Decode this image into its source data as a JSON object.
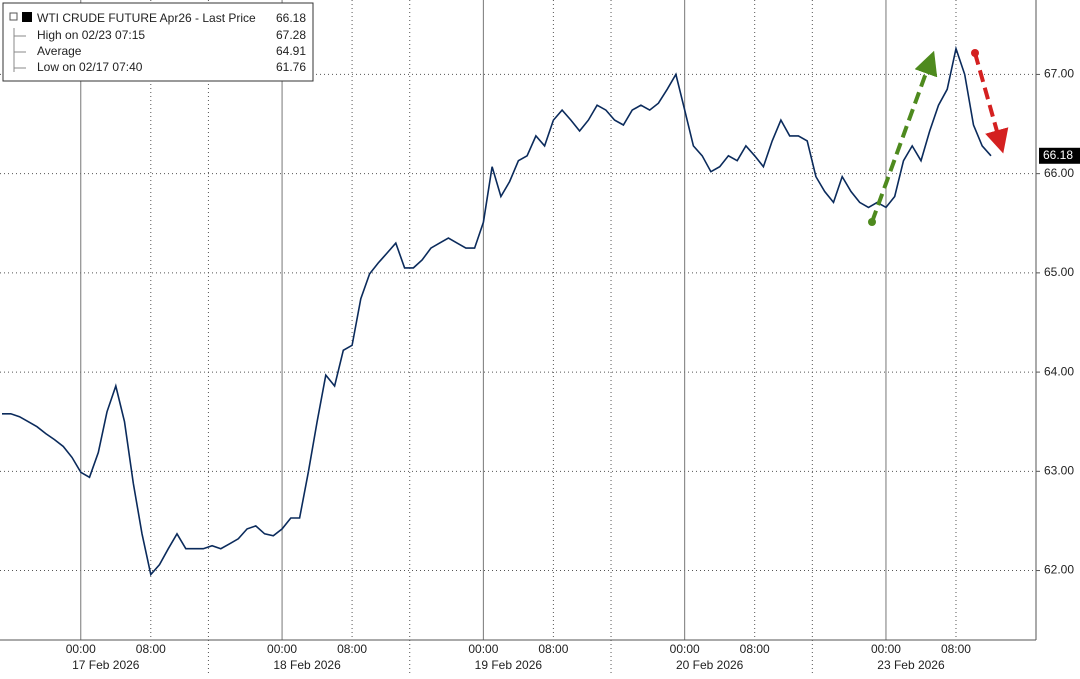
{
  "chart_data": {
    "type": "line",
    "legend": {
      "title": "WTI CRUDE FUTURE Apr26 - Last Price",
      "last_price": 66.18,
      "items": [
        {
          "label": "High on 02/23 07:15",
          "value": 67.28
        },
        {
          "label": "Average",
          "value": 64.91
        },
        {
          "label": "Low on 02/17 07:40",
          "value": 61.76
        }
      ]
    },
    "categories": [
      null,
      null,
      null,
      null,
      null,
      null,
      null,
      null,
      null,
      "00:00",
      null,
      null,
      null,
      null,
      null,
      null,
      null,
      "08:00",
      null,
      null,
      null,
      null,
      null,
      null,
      null,
      null,
      null,
      null,
      null,
      null,
      null,
      null,
      "00:00",
      null,
      null,
      null,
      null,
      null,
      null,
      null,
      "08:00",
      null,
      null,
      null,
      null,
      null,
      null,
      null,
      null,
      null,
      null,
      null,
      null,
      null,
      null,
      "00:00",
      null,
      null,
      null,
      null,
      null,
      null,
      null,
      "08:00",
      null,
      null,
      null,
      null,
      null,
      null,
      null,
      null,
      null,
      null,
      null,
      null,
      null,
      null,
      "00:00",
      null,
      null,
      null,
      null,
      null,
      null,
      null,
      "08:00",
      null,
      null,
      null,
      null,
      null,
      null,
      null,
      null,
      null,
      null,
      null,
      null,
      null,
      null,
      "00:00",
      null,
      null,
      null,
      null,
      null,
      null,
      null,
      "08:00",
      null,
      null,
      null,
      null,
      null,
      null,
      null,
      null
    ],
    "date_labels": [
      "17 Feb 2026",
      "18 Feb 2026",
      "19 Feb 2026",
      "20 Feb 2026",
      "23 Feb 2026"
    ],
    "series": [
      {
        "name": "WTI CRUDE FUTURE Apr26",
        "color": "#0b2b5c",
        "values": [
          63.58,
          63.58,
          63.55,
          63.5,
          63.45,
          63.38,
          63.32,
          63.25,
          63.14,
          62.99,
          62.94,
          63.19,
          63.6,
          63.86,
          63.5,
          62.88,
          62.37,
          61.96,
          62.06,
          62.22,
          62.37,
          62.22,
          62.22,
          62.22,
          62.25,
          62.22,
          62.27,
          62.32,
          62.42,
          62.45,
          62.37,
          62.35,
          62.42,
          62.53,
          62.53,
          62.99,
          63.5,
          63.97,
          63.86,
          64.22,
          64.27,
          64.74,
          64.99,
          65.1,
          65.2,
          65.3,
          65.05,
          65.05,
          65.13,
          65.25,
          65.3,
          65.35,
          65.3,
          65.25,
          65.25,
          65.51,
          66.07,
          65.77,
          65.92,
          66.13,
          66.18,
          66.38,
          66.28,
          66.54,
          66.64,
          66.54,
          66.43,
          66.54,
          66.69,
          66.64,
          66.54,
          66.49,
          66.64,
          66.69,
          66.64,
          66.71,
          66.85,
          67.0,
          66.64,
          66.28,
          66.18,
          66.02,
          66.07,
          66.18,
          66.13,
          66.28,
          66.18,
          66.07,
          66.33,
          66.54,
          66.38,
          66.38,
          66.33,
          65.97,
          65.82,
          65.71,
          65.97,
          65.82,
          65.71,
          65.66,
          65.71,
          65.66,
          65.77,
          66.13,
          66.28,
          66.13,
          66.43,
          66.69,
          66.85,
          67.26,
          67.0,
          66.49,
          66.28,
          66.18,
          null,
          null,
          null,
          null
        ]
      }
    ],
    "ylim": [
      61.3,
      67.75
    ],
    "yticks": [
      {
        "value": 62,
        "label": "62.00"
      },
      {
        "value": 63,
        "label": "63.00"
      },
      {
        "value": 64,
        "label": "64.00"
      },
      {
        "value": 65,
        "label": "65.00"
      },
      {
        "value": 66,
        "label": "66.00"
      },
      {
        "value": 67,
        "label": "67.00"
      }
    ],
    "grid": true
  }
}
